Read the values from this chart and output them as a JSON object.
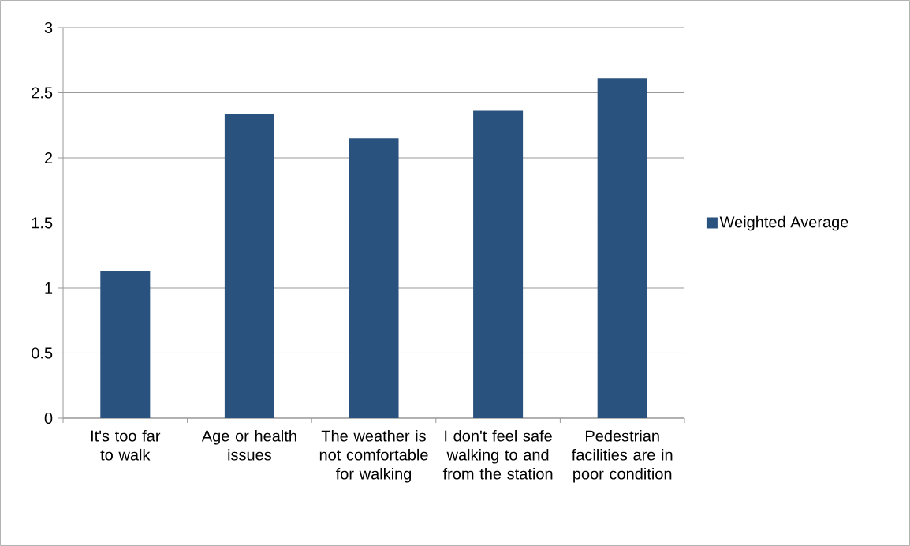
{
  "chart_data": {
    "type": "bar",
    "categories": [
      "It's too far to walk",
      "Age or health issues",
      "The weather is not comfortable for walking",
      "I don't feel safe walking to and from the station",
      "Pedestrian facilities are in poor condition"
    ],
    "series": [
      {
        "name": "Weighted Average",
        "color": "#2a527f",
        "values": [
          1.13,
          2.34,
          2.15,
          2.36,
          2.61
        ]
      }
    ],
    "ylim": [
      0,
      3
    ],
    "yticks": [
      0,
      0.5,
      1,
      1.5,
      2,
      2.5,
      3
    ],
    "grid": "y",
    "legend": "right"
  }
}
